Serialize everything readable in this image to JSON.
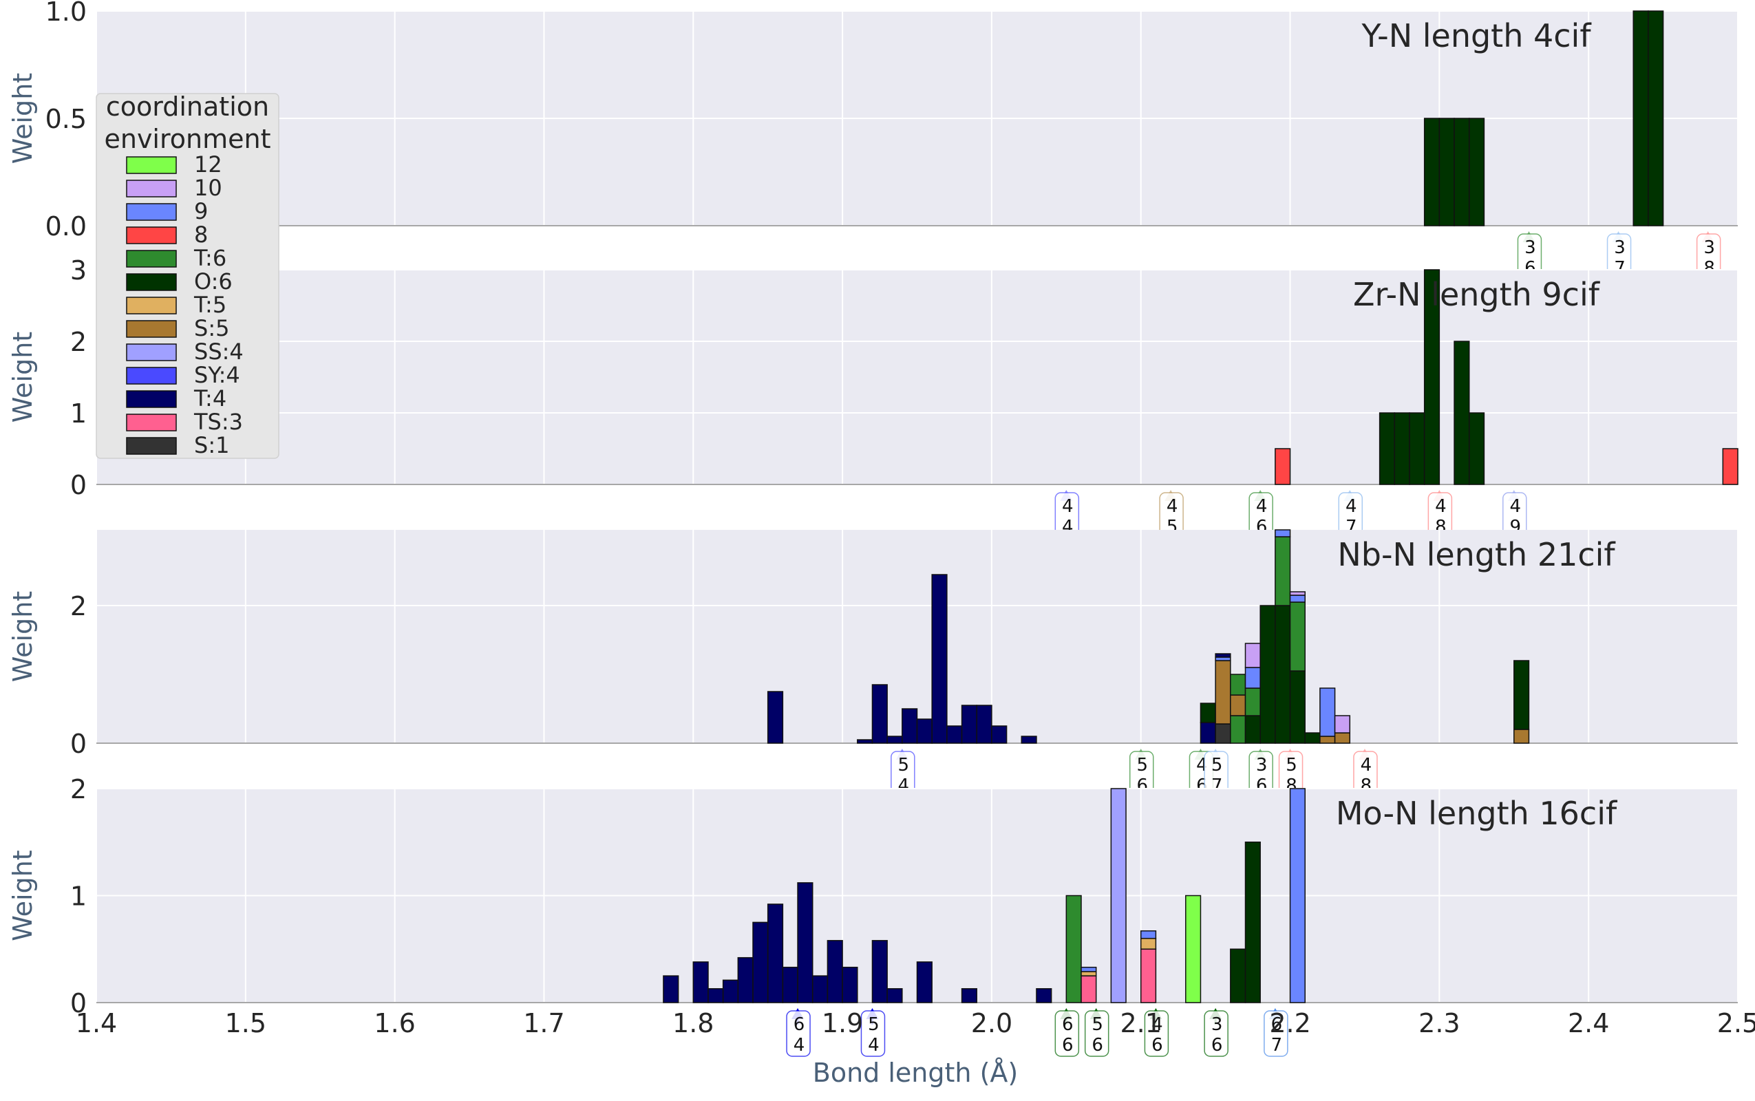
{
  "chart_data": {
    "type": "bar",
    "subtype": "stacked-histogram",
    "xlabel": "Bond length (Å)",
    "ylabel": "Weight",
    "xlim": [
      1.4,
      2.5
    ],
    "x_ticks": [
      "1.4",
      "1.5",
      "1.6",
      "1.7",
      "1.8",
      "1.9",
      "2.0",
      "2.1",
      "2.2",
      "2.3",
      "2.4",
      "2.5"
    ],
    "bin_width": 0.01,
    "grid": true,
    "legend": {
      "title_lines": [
        "coordination",
        "environment"
      ],
      "placement": "left",
      "entries": [
        {
          "key": "12",
          "label": "12",
          "color": "#7fff4a"
        },
        {
          "key": "10",
          "label": "10",
          "color": "#c8a0f5"
        },
        {
          "key": "9",
          "label": "9",
          "color": "#6a86ff"
        },
        {
          "key": "8",
          "label": "8",
          "color": "#ff4545"
        },
        {
          "key": "T:6",
          "label": "T:6",
          "color": "#2e8b2e"
        },
        {
          "key": "O:6",
          "label": "O:6",
          "color": "#003300"
        },
        {
          "key": "T:5",
          "label": "T:5",
          "color": "#e0b060"
        },
        {
          "key": "S:5",
          "label": "S:5",
          "color": "#a87830"
        },
        {
          "key": "SS:4",
          "label": "SS:4",
          "color": "#a0a0ff"
        },
        {
          "key": "SY:4",
          "label": "SY:4",
          "color": "#4a4aff"
        },
        {
          "key": "T:4",
          "label": "T:4",
          "color": "#000066"
        },
        {
          "key": "TS:3",
          "label": "TS:3",
          "color": "#ff6090"
        },
        {
          "key": "S:1",
          "label": "S:1",
          "color": "#333333"
        }
      ]
    },
    "panels": [
      {
        "title": "Y-N length 4cif",
        "ylim": [
          0,
          1.0
        ],
        "y_ticks": [
          0,
          0.5,
          1.0
        ],
        "y_tick_labels": [
          "0.0",
          "0.5",
          "1.0"
        ],
        "bars": [
          {
            "x": 2.29,
            "stack": [
              [
                "O:6",
                0.5
              ]
            ]
          },
          {
            "x": 2.3,
            "stack": [
              [
                "O:6",
                0.5
              ]
            ]
          },
          {
            "x": 2.31,
            "stack": [
              [
                "O:6",
                0.5
              ]
            ]
          },
          {
            "x": 2.32,
            "stack": [
              [
                "O:6",
                0.5
              ]
            ]
          },
          {
            "x": 2.43,
            "stack": [
              [
                "O:6",
                1.0
              ]
            ]
          },
          {
            "x": 2.44,
            "stack": [
              [
                "O:6",
                1.0
              ]
            ]
          }
        ],
        "markers": [
          {
            "x": 2.36,
            "top": "3",
            "bottom": "6",
            "color": "#2e8b2e"
          },
          {
            "x": 2.42,
            "top": "3",
            "bottom": "7",
            "color": "#87b7ee"
          },
          {
            "x": 2.48,
            "top": "3",
            "bottom": "8",
            "color": "#ff8080"
          }
        ]
      },
      {
        "title": "Zr-N length 9cif",
        "ylim": [
          0,
          3
        ],
        "y_ticks": [
          0,
          1,
          2,
          3
        ],
        "y_tick_labels": [
          "0",
          "1",
          "2",
          "3"
        ],
        "bars": [
          {
            "x": 2.19,
            "stack": [
              [
                "8",
                0.5
              ]
            ]
          },
          {
            "x": 2.26,
            "stack": [
              [
                "O:6",
                1.0
              ]
            ]
          },
          {
            "x": 2.27,
            "stack": [
              [
                "O:6",
                1.0
              ]
            ]
          },
          {
            "x": 2.28,
            "stack": [
              [
                "O:6",
                1.0
              ]
            ]
          },
          {
            "x": 2.29,
            "stack": [
              [
                "O:6",
                3.0
              ]
            ]
          },
          {
            "x": 2.31,
            "stack": [
              [
                "O:6",
                2.0
              ]
            ]
          },
          {
            "x": 2.32,
            "stack": [
              [
                "O:6",
                1.0
              ]
            ]
          },
          {
            "x": 2.49,
            "stack": [
              [
                "8",
                0.5
              ]
            ]
          }
        ],
        "markers": [
          {
            "x": 2.05,
            "top": "4",
            "bottom": "4",
            "color": "#4a4aff"
          },
          {
            "x": 2.12,
            "top": "4",
            "bottom": "5",
            "color": "#b8955a"
          },
          {
            "x": 2.18,
            "top": "4",
            "bottom": "6",
            "color": "#2e8b2e"
          },
          {
            "x": 2.24,
            "top": "4",
            "bottom": "7",
            "color": "#87b7ee"
          },
          {
            "x": 2.3,
            "top": "4",
            "bottom": "8",
            "color": "#ff8080"
          },
          {
            "x": 2.35,
            "top": "4",
            "bottom": "9",
            "color": "#8a9aee"
          }
        ]
      },
      {
        "title": "Nb-N length 21cif",
        "ylim": [
          0,
          3.1
        ],
        "y_ticks": [
          0,
          2
        ],
        "y_tick_labels": [
          "0",
          "2"
        ],
        "bars": [
          {
            "x": 1.85,
            "stack": [
              [
                "T:4",
                0.75
              ]
            ]
          },
          {
            "x": 1.91,
            "stack": [
              [
                "T:4",
                0.05
              ]
            ]
          },
          {
            "x": 1.92,
            "stack": [
              [
                "T:4",
                0.85
              ]
            ]
          },
          {
            "x": 1.93,
            "stack": [
              [
                "T:4",
                0.1
              ]
            ]
          },
          {
            "x": 1.94,
            "stack": [
              [
                "T:4",
                0.5
              ]
            ]
          },
          {
            "x": 1.95,
            "stack": [
              [
                "T:4",
                0.35
              ]
            ]
          },
          {
            "x": 1.96,
            "stack": [
              [
                "T:4",
                2.45
              ]
            ]
          },
          {
            "x": 1.97,
            "stack": [
              [
                "T:4",
                0.25
              ]
            ]
          },
          {
            "x": 1.98,
            "stack": [
              [
                "T:4",
                0.55
              ]
            ]
          },
          {
            "x": 1.99,
            "stack": [
              [
                "T:4",
                0.55
              ]
            ]
          },
          {
            "x": 2.0,
            "stack": [
              [
                "T:4",
                0.25
              ]
            ]
          },
          {
            "x": 2.02,
            "stack": [
              [
                "T:4",
                0.1
              ]
            ]
          },
          {
            "x": 2.14,
            "stack": [
              [
                "T:4",
                0.3
              ],
              [
                "O:6",
                0.28
              ]
            ]
          },
          {
            "x": 2.15,
            "stack": [
              [
                "S:1",
                0.28
              ],
              [
                "S:5",
                0.92
              ],
              [
                "9",
                0.05
              ],
              [
                "T:4",
                0.05
              ]
            ]
          },
          {
            "x": 2.16,
            "stack": [
              [
                "T:6",
                0.4
              ],
              [
                "S:5",
                0.3
              ],
              [
                "T:6",
                0.3
              ]
            ]
          },
          {
            "x": 2.17,
            "stack": [
              [
                "O:6",
                0.4
              ],
              [
                "T:6",
                0.4
              ],
              [
                "9",
                0.3
              ],
              [
                "10",
                0.35
              ]
            ]
          },
          {
            "x": 2.18,
            "stack": [
              [
                "O:6",
                2.0
              ]
            ]
          },
          {
            "x": 2.19,
            "stack": [
              [
                "O:6",
                2.0
              ],
              [
                "T:6",
                1.0
              ],
              [
                "9",
                0.1
              ],
              [
                "10",
                0.1
              ]
            ]
          },
          {
            "x": 2.2,
            "stack": [
              [
                "O:6",
                1.05
              ],
              [
                "T:6",
                1.0
              ],
              [
                "9",
                0.1
              ],
              [
                "10",
                0.05
              ]
            ]
          },
          {
            "x": 2.21,
            "stack": [
              [
                "O:6",
                0.15
              ]
            ]
          },
          {
            "x": 2.22,
            "stack": [
              [
                "S:5",
                0.1
              ],
              [
                "9",
                0.7
              ]
            ]
          },
          {
            "x": 2.23,
            "stack": [
              [
                "S:5",
                0.15
              ],
              [
                "10",
                0.25
              ]
            ]
          },
          {
            "x": 2.35,
            "stack": [
              [
                "S:5",
                0.2
              ],
              [
                "O:6",
                1.0
              ]
            ]
          }
        ],
        "markers": [
          {
            "x": 1.94,
            "top": "5",
            "bottom": "4",
            "color": "#4a4aff"
          },
          {
            "x": 2.1,
            "top": "5",
            "bottom": "6",
            "color": "#2e8b2e"
          },
          {
            "x": 2.14,
            "top": "4",
            "bottom": "6",
            "color": "#2e8b2e"
          },
          {
            "x": 2.15,
            "top": "5",
            "bottom": "7",
            "color": "#87b7ee"
          },
          {
            "x": 2.18,
            "top": "3",
            "bottom": "6",
            "color": "#2e8b2e"
          },
          {
            "x": 2.2,
            "top": "5",
            "bottom": "8",
            "color": "#ff8080"
          },
          {
            "x": 2.25,
            "top": "4",
            "bottom": "8",
            "color": "#ff8080"
          }
        ]
      },
      {
        "title": "Mo-N length 16cif",
        "ylim": [
          0,
          2
        ],
        "y_ticks": [
          0,
          1,
          2
        ],
        "y_tick_labels": [
          "0",
          "1",
          "2"
        ],
        "bars": [
          {
            "x": 1.78,
            "stack": [
              [
                "T:4",
                0.25
              ]
            ]
          },
          {
            "x": 1.8,
            "stack": [
              [
                "T:4",
                0.38
              ]
            ]
          },
          {
            "x": 1.81,
            "stack": [
              [
                "T:4",
                0.13
              ]
            ]
          },
          {
            "x": 1.82,
            "stack": [
              [
                "T:4",
                0.21
              ]
            ]
          },
          {
            "x": 1.83,
            "stack": [
              [
                "T:4",
                0.42
              ]
            ]
          },
          {
            "x": 1.84,
            "stack": [
              [
                "T:4",
                0.75
              ]
            ]
          },
          {
            "x": 1.85,
            "stack": [
              [
                "T:4",
                0.92
              ]
            ]
          },
          {
            "x": 1.86,
            "stack": [
              [
                "T:4",
                0.33
              ]
            ]
          },
          {
            "x": 1.87,
            "stack": [
              [
                "T:4",
                1.12
              ]
            ]
          },
          {
            "x": 1.88,
            "stack": [
              [
                "T:4",
                0.25
              ]
            ]
          },
          {
            "x": 1.89,
            "stack": [
              [
                "T:4",
                0.58
              ]
            ]
          },
          {
            "x": 1.9,
            "stack": [
              [
                "T:4",
                0.33
              ]
            ]
          },
          {
            "x": 1.92,
            "stack": [
              [
                "T:4",
                0.58
              ]
            ]
          },
          {
            "x": 1.93,
            "stack": [
              [
                "T:4",
                0.13
              ]
            ]
          },
          {
            "x": 1.95,
            "stack": [
              [
                "T:4",
                0.38
              ]
            ]
          },
          {
            "x": 1.98,
            "stack": [
              [
                "T:4",
                0.13
              ]
            ]
          },
          {
            "x": 2.03,
            "stack": [
              [
                "T:4",
                0.13
              ]
            ]
          },
          {
            "x": 2.05,
            "stack": [
              [
                "T:6",
                1.0
              ]
            ]
          },
          {
            "x": 2.06,
            "stack": [
              [
                "TS:3",
                0.25
              ],
              [
                "T:5",
                0.04
              ],
              [
                "9",
                0.04
              ]
            ]
          },
          {
            "x": 2.08,
            "stack": [
              [
                "SS:4",
                2.0
              ]
            ]
          },
          {
            "x": 2.1,
            "stack": [
              [
                "TS:3",
                0.5
              ],
              [
                "T:5",
                0.1
              ],
              [
                "9",
                0.07
              ]
            ]
          },
          {
            "x": 2.13,
            "stack": [
              [
                "12",
                1.0
              ]
            ]
          },
          {
            "x": 2.16,
            "stack": [
              [
                "O:6",
                0.5
              ]
            ]
          },
          {
            "x": 2.17,
            "stack": [
              [
                "O:6",
                1.5
              ]
            ]
          },
          {
            "x": 2.2,
            "stack": [
              [
                "9",
                2.0
              ]
            ]
          }
        ],
        "markers": [
          {
            "x": 1.87,
            "top": "6",
            "bottom": "4",
            "color": "#0000ee",
            "solid": true
          },
          {
            "x": 1.92,
            "top": "5",
            "bottom": "4",
            "color": "#0000ee",
            "solid": true
          },
          {
            "x": 2.05,
            "top": "6",
            "bottom": "6",
            "color": "#006400",
            "solid": true
          },
          {
            "x": 2.07,
            "top": "5",
            "bottom": "6",
            "color": "#006400",
            "solid": true
          },
          {
            "x": 2.11,
            "top": "4",
            "bottom": "6",
            "color": "#006400",
            "solid": true
          },
          {
            "x": 2.15,
            "top": "3",
            "bottom": "6",
            "color": "#006400",
            "solid": true
          },
          {
            "x": 2.19,
            "top": "6",
            "bottom": "7",
            "color": "#4a8ae8",
            "solid": true
          }
        ]
      }
    ]
  }
}
